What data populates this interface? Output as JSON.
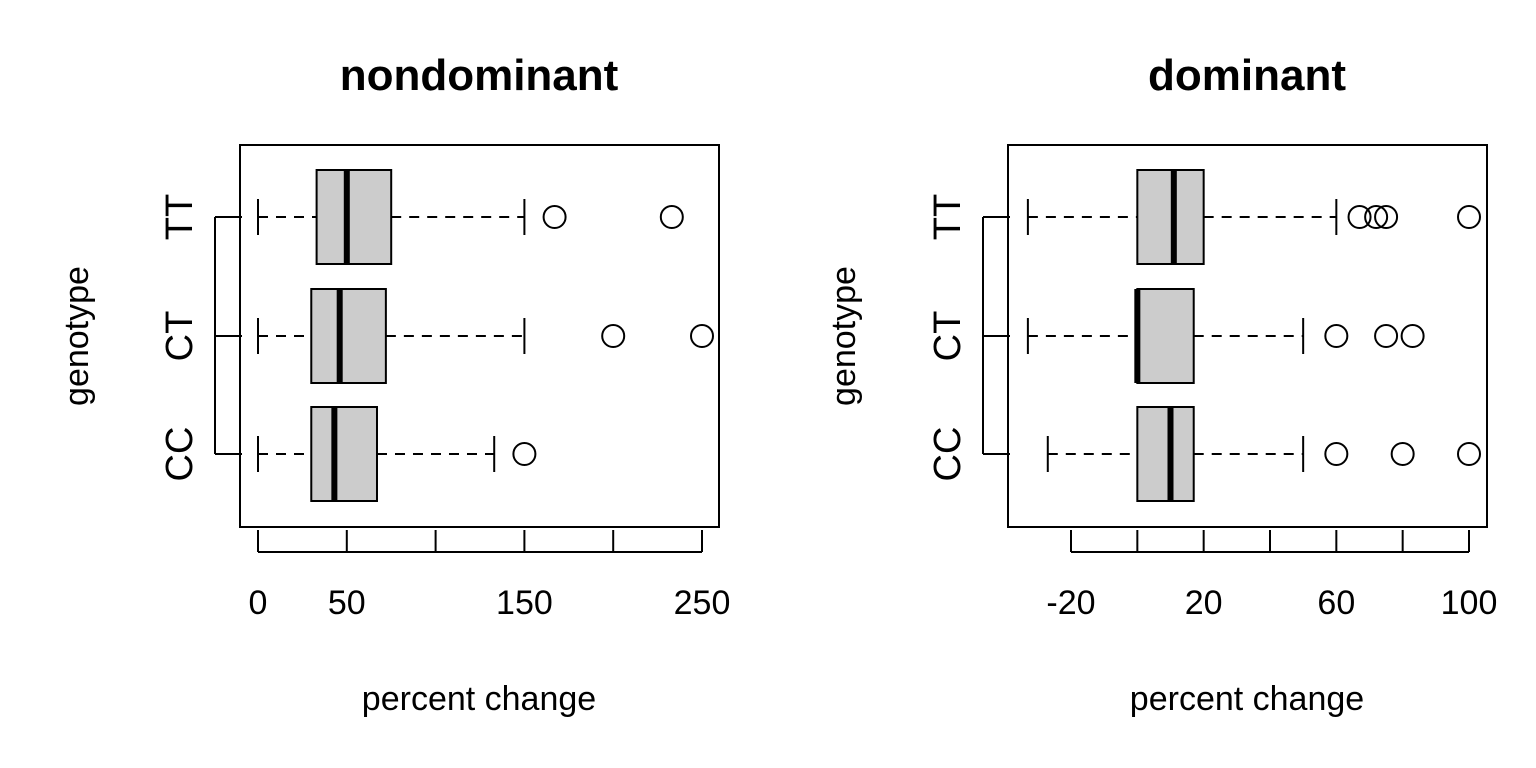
{
  "chart_data": [
    {
      "type": "boxplot",
      "orientation": "horizontal",
      "title": "nondominant",
      "xlabel": "percent change",
      "ylabel": "genotype",
      "xlim": [
        -10,
        260
      ],
      "x_ticks": [
        0,
        50,
        100,
        150,
        200,
        250
      ],
      "x_tick_labels": [
        "0",
        "50",
        "",
        "150",
        "",
        "250"
      ],
      "categories": [
        "CC",
        "CT",
        "TT"
      ],
      "boxes": [
        {
          "category": "CC",
          "whisker_low": 0,
          "q1": 30,
          "median": 43,
          "q3": 67,
          "whisker_high": 133,
          "outliers": [
            150
          ]
        },
        {
          "category": "CT",
          "whisker_low": 0,
          "q1": 30,
          "median": 46,
          "q3": 72,
          "whisker_high": 150,
          "outliers": [
            200,
            250
          ]
        },
        {
          "category": "TT",
          "whisker_low": 0,
          "q1": 33,
          "median": 50,
          "q3": 75,
          "whisker_high": 150,
          "outliers": [
            167,
            233
          ]
        }
      ]
    },
    {
      "type": "boxplot",
      "orientation": "horizontal",
      "title": "dominant",
      "xlabel": "percent change",
      "ylabel": "genotype",
      "xlim": [
        -33,
        106
      ],
      "x_ticks": [
        -20,
        0,
        20,
        40,
        60,
        80,
        100
      ],
      "x_tick_labels": [
        "-20",
        "",
        "20",
        "",
        "60",
        "",
        "100"
      ],
      "categories": [
        "CC",
        "CT",
        "TT"
      ],
      "boxes": [
        {
          "category": "CC",
          "whisker_low": -27,
          "q1": 0,
          "median": 10,
          "q3": 17,
          "whisker_high": 50,
          "outliers": [
            60,
            80,
            100
          ]
        },
        {
          "category": "CT",
          "whisker_low": -33,
          "q1": 0,
          "median": 0,
          "q3": 17,
          "whisker_high": 50,
          "outliers": [
            60,
            75,
            83
          ]
        },
        {
          "category": "TT",
          "whisker_low": -33,
          "q1": 0,
          "median": 11,
          "q3": 20,
          "whisker_high": 60,
          "outliers": [
            67,
            72,
            75,
            100
          ]
        }
      ]
    }
  ]
}
